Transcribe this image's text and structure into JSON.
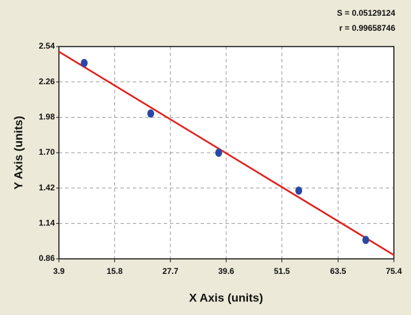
{
  "chart_data": {
    "type": "scatter",
    "annotations": [
      "S = 0.05129124",
      "r = 0.99658746"
    ],
    "x_label": "X Axis (units)",
    "y_label": "Y Axis (units)",
    "points": {
      "x": [
        9.3,
        23.5,
        38.0,
        55.1,
        69.4
      ],
      "values": [
        2.41,
        2.01,
        1.7,
        1.4,
        1.01
      ],
      "color": "#2b47a6"
    },
    "fit_line": {
      "x": [
        3.9,
        75.4
      ],
      "values": [
        2.5,
        0.89
      ],
      "color": "#e0201c"
    },
    "xlim": [
      3.9,
      75.4
    ],
    "xticks": [
      3.9,
      15.8,
      27.7,
      39.6,
      51.5,
      63.5,
      75.4
    ],
    "ylim": [
      0.86,
      2.54
    ],
    "yticks": [
      0.86,
      1.14,
      1.42,
      {
        "value": 1.7,
        "label": "1.70"
      },
      1.98,
      2.26,
      2.54
    ],
    "grid": true
  }
}
